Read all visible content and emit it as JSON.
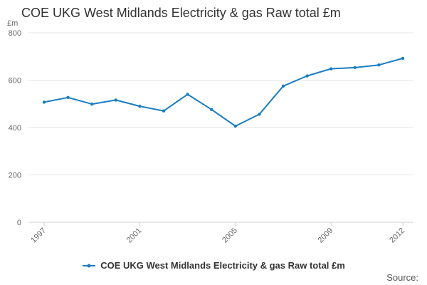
{
  "chart_data": {
    "type": "line",
    "title": "COE UKG West Midlands Electricity & gas Raw total £m",
    "y_unit": "£m",
    "x": [
      1997,
      1998,
      1999,
      2000,
      2001,
      2002,
      2003,
      2004,
      2005,
      2006,
      2007,
      2008,
      2009,
      2010,
      2011,
      2012
    ],
    "x_tick_labels": [
      "1997",
      "2001",
      "2005",
      "2009",
      "2012"
    ],
    "y_ticks": [
      0,
      200,
      400,
      600,
      800
    ],
    "ylim": [
      0,
      800
    ],
    "xlim": [
      1997,
      2012
    ],
    "grid": "horizontal",
    "legend_position": "bottom",
    "series": [
      {
        "name": "COE UKG West Midlands Electricity & gas Raw total £m",
        "color": "#1a7dc0",
        "values": [
          507,
          527,
          499,
          516,
          490,
          470,
          540,
          476,
          406,
          456,
          575,
          618,
          648,
          653,
          664,
          692
        ]
      }
    ]
  },
  "source_label": "Source:"
}
